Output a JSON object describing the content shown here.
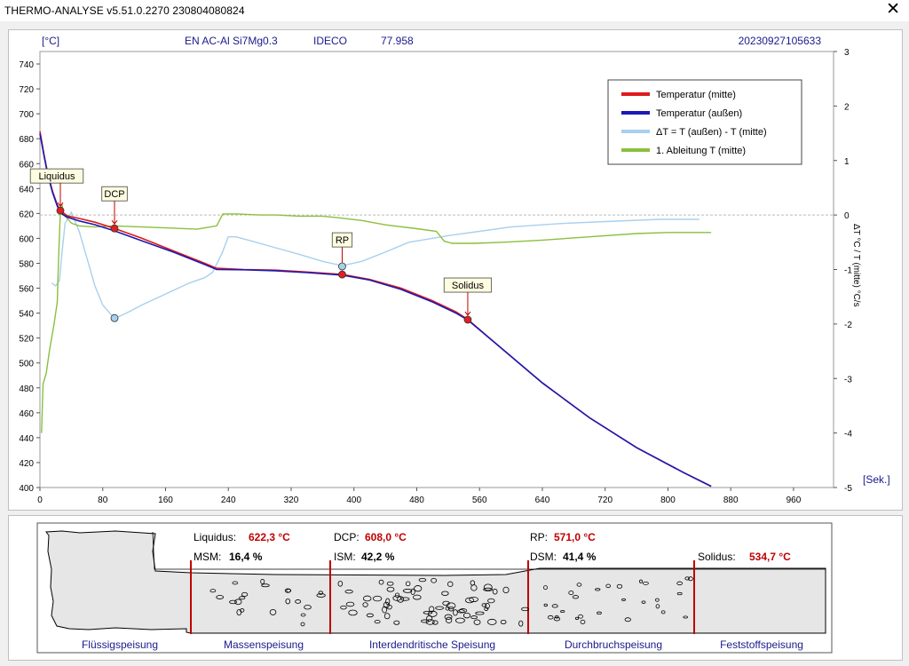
{
  "window": {
    "title": "THERMO-ANALYSE  v5.51.0.2270  230804080824",
    "close_glyph": "✕"
  },
  "header": {
    "unit_left": "[°C]",
    "alloy": "EN AC-Al Si7Mg0.3",
    "foundry": "IDECO",
    "value": "77.958",
    "measurement_id": "20230927105633",
    "unit_right": "[Sek.]",
    "right_axis_label": "ΔT °C / T (mitte) °C/s"
  },
  "colors": {
    "temp_mitte": "#dd1a1a",
    "temp_aussen": "#1a1ab4",
    "delta_t": "#a8d0ee",
    "derivative": "#8cbf3c",
    "marker_red": "#e02020",
    "marker_blue": "#a8d0ee",
    "value_red": "#c00000",
    "header_blue": "#1a1a8c",
    "zone_line": "#c00000"
  },
  "chart_data": {
    "type": "line",
    "x_axis": {
      "range": [
        0,
        960
      ],
      "ticks": [
        0,
        80,
        160,
        240,
        320,
        400,
        480,
        560,
        640,
        720,
        800,
        880,
        960
      ]
    },
    "y_left": {
      "range": [
        400,
        750
      ],
      "ticks": [
        400,
        420,
        440,
        460,
        480,
        500,
        520,
        540,
        560,
        580,
        600,
        620,
        640,
        660,
        680,
        700,
        720,
        740
      ]
    },
    "y_right": {
      "range": [
        -5,
        3
      ],
      "ticks": [
        -5,
        -4,
        -3,
        -2,
        -1,
        0,
        1,
        2,
        3
      ]
    },
    "legend_position": "top-right",
    "zero_line": "dashed",
    "series": [
      {
        "name": "Temperatur (mitte)",
        "axis": "left",
        "color_key": "temp_mitte",
        "points": [
          [
            0,
            686
          ],
          [
            5,
            668
          ],
          [
            10,
            652
          ],
          [
            16,
            638
          ],
          [
            22,
            627
          ],
          [
            26,
            622.3
          ],
          [
            35,
            618
          ],
          [
            50,
            616
          ],
          [
            70,
            613
          ],
          [
            95,
            608
          ],
          [
            130,
            600
          ],
          [
            170,
            590
          ],
          [
            210,
            580
          ],
          [
            225,
            576
          ],
          [
            260,
            575
          ],
          [
            300,
            574.5
          ],
          [
            340,
            573
          ],
          [
            385,
            571
          ],
          [
            420,
            567
          ],
          [
            460,
            560
          ],
          [
            500,
            550
          ],
          [
            530,
            541
          ],
          [
            545,
            535
          ],
          [
            580,
            516
          ],
          [
            640,
            484
          ],
          [
            700,
            456
          ],
          [
            760,
            432
          ],
          [
            820,
            412
          ],
          [
            855,
            401
          ]
        ]
      },
      {
        "name": "Temperatur (außen)",
        "axis": "left",
        "color_key": "temp_aussen",
        "points": [
          [
            0,
            684
          ],
          [
            5,
            667
          ],
          [
            10,
            651
          ],
          [
            16,
            637
          ],
          [
            22,
            626
          ],
          [
            27,
            620
          ],
          [
            35,
            617
          ],
          [
            50,
            614
          ],
          [
            70,
            611
          ],
          [
            95,
            606
          ],
          [
            130,
            598
          ],
          [
            170,
            589
          ],
          [
            210,
            579
          ],
          [
            225,
            575
          ],
          [
            260,
            574.8
          ],
          [
            300,
            574
          ],
          [
            340,
            572.5
          ],
          [
            385,
            570.5
          ],
          [
            420,
            566.5
          ],
          [
            460,
            559
          ],
          [
            500,
            549
          ],
          [
            530,
            540
          ],
          [
            545,
            534.5
          ],
          [
            580,
            516
          ],
          [
            640,
            484
          ],
          [
            700,
            456
          ],
          [
            760,
            432
          ],
          [
            820,
            412
          ],
          [
            855,
            401
          ]
        ]
      },
      {
        "name": "ΔT = T (außen) - T (mitte)",
        "axis": "right",
        "color_key": "delta_t",
        "points": [
          [
            15,
            -1.25
          ],
          [
            20,
            -1.3
          ],
          [
            25,
            -1.2
          ],
          [
            28,
            -0.7
          ],
          [
            32,
            -0.15
          ],
          [
            40,
            0.05
          ],
          [
            50,
            -0.3
          ],
          [
            60,
            -0.8
          ],
          [
            70,
            -1.3
          ],
          [
            80,
            -1.65
          ],
          [
            95,
            -1.9
          ],
          [
            110,
            -1.8
          ],
          [
            130,
            -1.65
          ],
          [
            160,
            -1.45
          ],
          [
            190,
            -1.25
          ],
          [
            210,
            -1.15
          ],
          [
            220,
            -1.05
          ],
          [
            232,
            -0.7
          ],
          [
            240,
            -0.4
          ],
          [
            250,
            -0.4
          ],
          [
            270,
            -0.48
          ],
          [
            300,
            -0.6
          ],
          [
            330,
            -0.72
          ],
          [
            360,
            -0.85
          ],
          [
            385,
            -0.93
          ],
          [
            410,
            -0.85
          ],
          [
            440,
            -0.68
          ],
          [
            470,
            -0.5
          ],
          [
            520,
            -0.38
          ],
          [
            560,
            -0.3
          ],
          [
            600,
            -0.22
          ],
          [
            660,
            -0.16
          ],
          [
            720,
            -0.12
          ],
          [
            790,
            -0.08
          ],
          [
            840,
            -0.08
          ]
        ]
      },
      {
        "name": "1. Ableitung T (mitte)",
        "axis": "right",
        "color_key": "derivative",
        "points": [
          [
            2,
            -4.0
          ],
          [
            4,
            -3.1
          ],
          [
            8,
            -2.9
          ],
          [
            12,
            -2.5
          ],
          [
            18,
            -2.0
          ],
          [
            22,
            -1.6
          ],
          [
            24,
            -0.7
          ],
          [
            26,
            0.05
          ],
          [
            28,
            0.2
          ],
          [
            30,
            0.0
          ],
          [
            34,
            -0.05
          ],
          [
            40,
            -0.15
          ],
          [
            50,
            -0.2
          ],
          [
            70,
            -0.22
          ],
          [
            95,
            -0.2
          ],
          [
            130,
            -0.22
          ],
          [
            170,
            -0.24
          ],
          [
            200,
            -0.26
          ],
          [
            225,
            -0.2
          ],
          [
            233,
            0.02
          ],
          [
            250,
            0.02
          ],
          [
            280,
            0.0
          ],
          [
            300,
            0.0
          ],
          [
            330,
            -0.02
          ],
          [
            360,
            -0.02
          ],
          [
            380,
            -0.05
          ],
          [
            410,
            -0.1
          ],
          [
            440,
            -0.18
          ],
          [
            480,
            -0.25
          ],
          [
            505,
            -0.3
          ],
          [
            515,
            -0.48
          ],
          [
            525,
            -0.52
          ],
          [
            555,
            -0.52
          ],
          [
            590,
            -0.5
          ],
          [
            640,
            -0.46
          ],
          [
            700,
            -0.4
          ],
          [
            760,
            -0.34
          ],
          [
            800,
            -0.32
          ],
          [
            855,
            -0.32
          ]
        ]
      }
    ],
    "markers": [
      {
        "label": "Liquidus",
        "x": 26,
        "y": 622.3,
        "style": "red"
      },
      {
        "label": "DCP",
        "x": 95,
        "y": 608.0,
        "style": "red"
      },
      {
        "label": "RP",
        "x": 385,
        "y": 571.0,
        "style": "red"
      },
      {
        "label": "",
        "x": 385,
        "y": 577.5,
        "style": "blue"
      },
      {
        "label": "",
        "x": 95,
        "y": 536,
        "style": "blue"
      },
      {
        "label": "Solidus",
        "x": 545,
        "y": 534.7,
        "style": "red"
      }
    ]
  },
  "results": {
    "values": [
      {
        "label": "Liquidus:",
        "value": "622,3 °C"
      },
      {
        "label": "DCP:",
        "value": "608,0 °C"
      },
      {
        "label": "RP:",
        "value": "571,0 °C"
      },
      {
        "label": "Solidus:",
        "value": "534,7 °C"
      }
    ],
    "percentages": [
      {
        "label": "MSM:",
        "value": "16,4 %"
      },
      {
        "label": "ISM:",
        "value": "42,2 %"
      },
      {
        "label": "DSM:",
        "value": "41,4 %"
      }
    ],
    "zones": [
      "Flüssigspeisung",
      "Massenspeisung",
      "Interdendritische Speisung",
      "Durchbruchspeisung",
      "Feststoffspeisung"
    ]
  }
}
